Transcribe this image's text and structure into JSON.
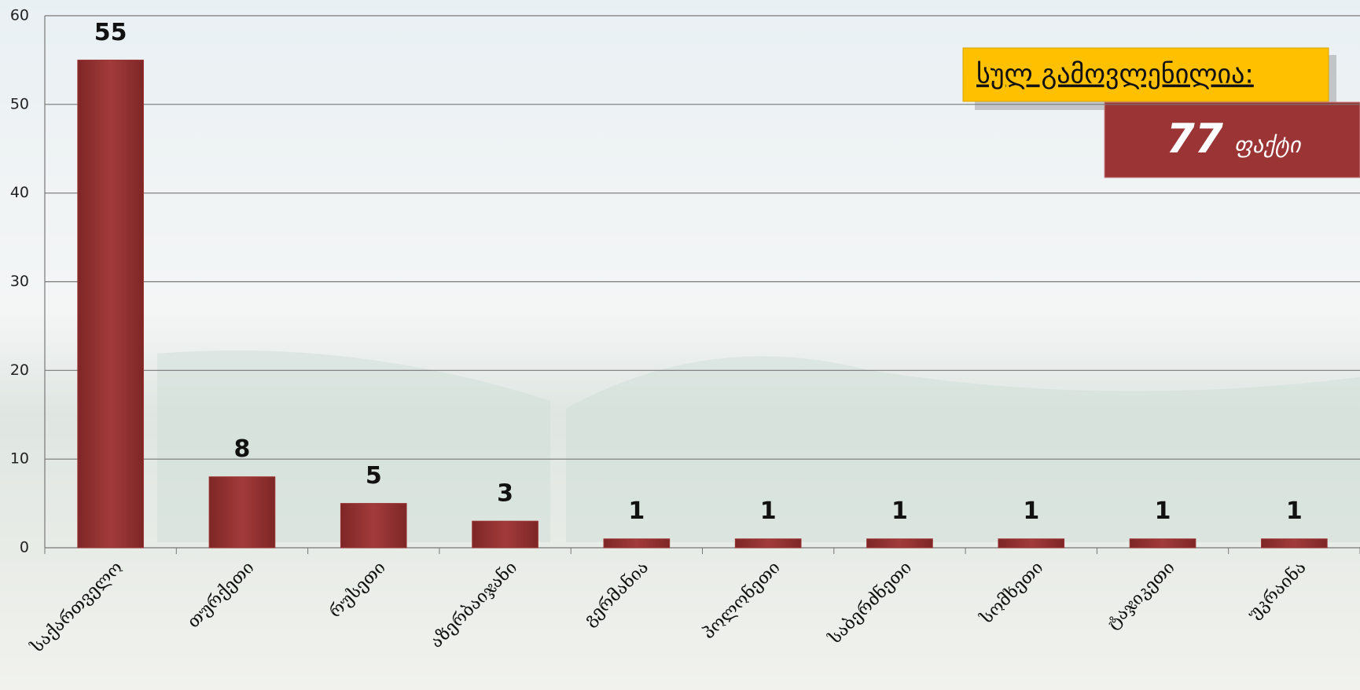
{
  "chart_data": {
    "type": "bar",
    "categories": [
      "საქართველო",
      "თურქეთი",
      "რუსეთი",
      "აზერბაიჯანი",
      "გერმანია",
      "პოლონეთი",
      "საბერძნეთი",
      "სომხეთი",
      "ტაჯიკეთი",
      "უკრაინა"
    ],
    "values": [
      55,
      8,
      5,
      3,
      1,
      1,
      1,
      1,
      1,
      1
    ],
    "color": "#9b3535",
    "ylim": [
      0,
      60
    ],
    "yticks": [
      0,
      10,
      20,
      30,
      40,
      50,
      60
    ],
    "grid": true,
    "total": {
      "label": "სულ გამოვლენილია:",
      "value": 77,
      "unit": "ფაქტი"
    }
  }
}
